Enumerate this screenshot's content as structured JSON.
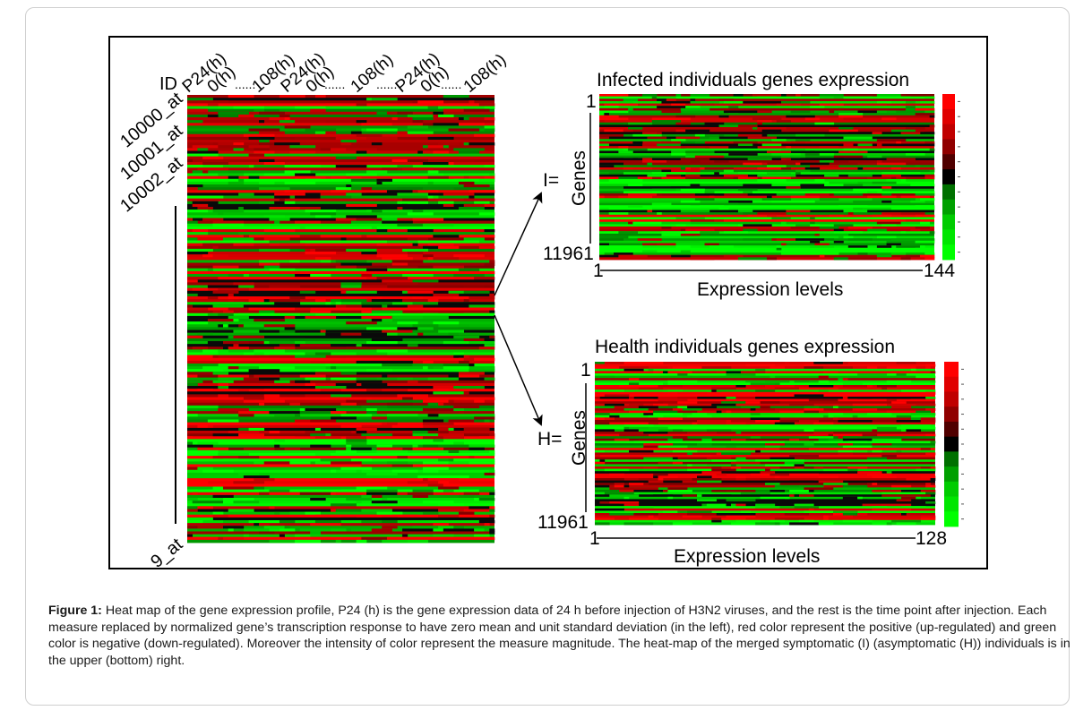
{
  "figure": {
    "left_panel": {
      "id_label": "ID",
      "column_labels": [
        "P24(h)",
        "0(h)",
        "108(h)",
        "P24(h)",
        "0(h)",
        "108(h)",
        "P24(h)",
        "0(h)",
        "108(h)"
      ],
      "column_separator": "......",
      "row_labels": [
        "10000_at",
        "10001_at",
        "10002_at"
      ],
      "last_row_label": "9_at"
    },
    "infected_panel": {
      "title": "Infected individuals genes expression",
      "set_label": "I=",
      "y_axis_label": "Genes",
      "y_start": "1",
      "y_end": "11961",
      "x_start": "1",
      "x_end": "144",
      "x_axis_label": "Expression levels"
    },
    "health_panel": {
      "title": "Health individuals genes expression",
      "set_label": "H=",
      "y_axis_label": "Genes",
      "y_start": "1",
      "y_end": "11961",
      "x_start": "1",
      "x_end": "128",
      "x_axis_label": "Expression levels"
    },
    "colors": {
      "up": "#ff0000",
      "neutral": "#000000",
      "down": "#00ff00"
    }
  },
  "caption": {
    "label": "Figure 1:",
    "text": " Heat map of the gene expression profile, P24 (h) is the gene expression data of 24 h before injection of H3N2 viruses, and the rest is the time point after injection. Each measure replaced by normalized gene’s transcription response to have zero mean and unit standard deviation (in the left), red color represent the positive (up-regulated) and green color is negative (down-regulated). Moreover the intensity of color represent the measure magnitude. The heat-map of the merged symptomatic (I) (asymptomatic (H)) individuals is in the upper (bottom) right."
  }
}
